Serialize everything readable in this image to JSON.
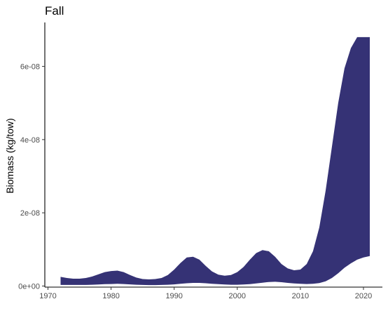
{
  "chart_data": {
    "type": "area",
    "title": "Fall",
    "xlabel": "",
    "ylabel": "Biomass (kg/tow)",
    "xlim": [
      1969.5,
      2023
    ],
    "ylim": [
      -3e-10,
      7.2e-08
    ],
    "x_ticks": [
      1970,
      1980,
      1990,
      2000,
      2010,
      2020
    ],
    "x_tick_labels": [
      "1970",
      "1980",
      "1990",
      "2000",
      "2010",
      "2020"
    ],
    "y_ticks": [
      0,
      2e-08,
      4e-08,
      6e-08
    ],
    "y_tick_labels": [
      "0e+00",
      "2e-08",
      "4e-08",
      "6e-08"
    ],
    "grid": false,
    "fill_color": "#353275",
    "series": [
      {
        "x": [
          1972,
          1973,
          1974,
          1975,
          1976,
          1977,
          1978,
          1979,
          1980,
          1981,
          1982,
          1983,
          1984,
          1985,
          1986,
          1987,
          1988,
          1989,
          1990,
          1991,
          1992,
          1993,
          1994,
          1995,
          1996,
          1997,
          1998,
          1999,
          2000,
          2001,
          2002,
          2003,
          2004,
          2005,
          2006,
          2007,
          2008,
          2009,
          2010,
          2011,
          2012,
          2013,
          2014,
          2015,
          2016,
          2017,
          2018,
          2019,
          2020,
          2021
        ],
        "lower": [
          3e-10,
          3e-10,
          3e-10,
          3e-10,
          3e-10,
          3.5e-10,
          4e-10,
          5e-10,
          5.5e-10,
          6e-10,
          5.5e-10,
          4.5e-10,
          3.5e-10,
          3e-10,
          2.5e-10,
          2.5e-10,
          3e-10,
          3.5e-10,
          4.5e-10,
          6e-10,
          7.5e-10,
          8.5e-10,
          8.5e-10,
          7.5e-10,
          6e-10,
          5e-10,
          4e-10,
          3.5e-10,
          3.5e-10,
          4e-10,
          5e-10,
          7e-10,
          9e-10,
          1.1e-09,
          1.15e-09,
          1.05e-09,
          8.5e-10,
          7e-10,
          6e-10,
          5.5e-10,
          6e-10,
          8e-10,
          1.3e-09,
          2.2e-09,
          3.5e-09,
          5e-09,
          6.2e-09,
          7.2e-09,
          7.8e-09,
          8.2e-09
        ],
        "upper": [
          2.5e-09,
          2.2e-09,
          2e-09,
          2e-09,
          2.2e-09,
          2.6e-09,
          3.2e-09,
          3.8e-09,
          4.1e-09,
          4.2e-09,
          3.8e-09,
          3e-09,
          2.3e-09,
          1.9e-09,
          1.8e-09,
          1.9e-09,
          2.2e-09,
          3e-09,
          4.5e-09,
          6.3e-09,
          7.8e-09,
          8e-09,
          7.2e-09,
          5.5e-09,
          4e-09,
          3.1e-09,
          2.8e-09,
          3e-09,
          3.8e-09,
          5.2e-09,
          7.2e-09,
          9e-09,
          9.8e-09,
          9.5e-09,
          8e-09,
          6e-09,
          4.8e-09,
          4.3e-09,
          4.5e-09,
          6e-09,
          9.5e-09,
          1.6e-08,
          2.6e-08,
          3.8e-08,
          5e-08,
          5.95e-08,
          6.5e-08,
          6.8e-08,
          6.8e-08,
          6.8e-08
        ]
      }
    ]
  }
}
